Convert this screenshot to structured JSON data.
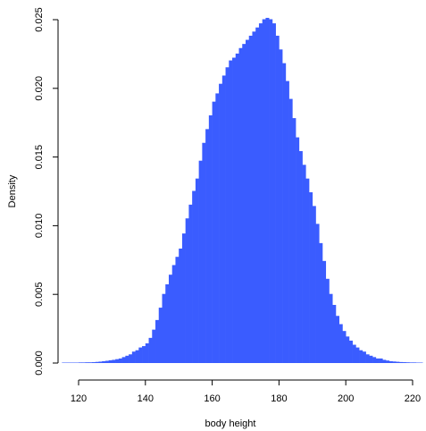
{
  "chart_data": {
    "type": "histogram",
    "x_label": "body height",
    "y_label": "Density",
    "color": "#3a5cff",
    "bins": [
      115,
      116,
      117,
      118,
      119,
      120,
      121,
      122,
      123,
      124,
      125,
      126,
      127,
      128,
      129,
      130,
      131,
      132,
      133,
      134,
      135,
      136,
      137,
      138,
      139,
      140,
      141,
      142,
      143,
      144,
      145,
      146,
      147,
      148,
      149,
      150,
      151,
      152,
      153,
      154,
      155,
      156,
      157,
      158,
      159,
      160,
      161,
      162,
      163,
      164,
      165,
      166,
      167,
      168,
      169,
      170,
      171,
      172,
      173,
      174,
      175,
      176,
      177,
      178,
      179,
      180,
      181,
      182,
      183,
      184,
      185,
      186,
      187,
      188,
      189,
      190,
      191,
      192,
      193,
      194,
      195,
      196,
      197,
      198,
      199,
      200,
      201,
      202,
      203,
      204,
      205,
      206,
      207,
      208,
      209,
      210,
      211,
      212,
      213,
      214,
      215,
      216,
      217,
      218,
      219,
      220,
      221,
      222,
      223
    ],
    "values": [
      0,
      0,
      0,
      0,
      0,
      1e-05,
      1e-05,
      2e-05,
      2e-05,
      3e-05,
      5e-05,
      7e-05,
      0.0001,
      0.00013,
      0.00017,
      0.0002,
      0.00025,
      0.0003,
      0.0004,
      0.0005,
      0.0006,
      0.0008,
      0.0009,
      0.0011,
      0.0012,
      0.0014,
      0.0018,
      0.0024,
      0.0031,
      0.004,
      0.005,
      0.0057,
      0.0064,
      0.0071,
      0.0077,
      0.0083,
      0.0094,
      0.0105,
      0.0115,
      0.0125,
      0.0134,
      0.0147,
      0.016,
      0.017,
      0.018,
      0.019,
      0.0196,
      0.0203,
      0.0209,
      0.0215,
      0.022,
      0.0222,
      0.0225,
      0.0229,
      0.0232,
      0.0235,
      0.0238,
      0.0241,
      0.0244,
      0.0247,
      0.025,
      0.0251,
      0.025,
      0.0247,
      0.0238,
      0.0228,
      0.0218,
      0.0205,
      0.0192,
      0.0178,
      0.0164,
      0.0154,
      0.0144,
      0.0134,
      0.0124,
      0.0114,
      0.0101,
      0.0087,
      0.0074,
      0.0061,
      0.005,
      0.0042,
      0.0034,
      0.0028,
      0.0023,
      0.0019,
      0.0016,
      0.0013,
      0.0011,
      0.0009,
      0.0008,
      0.0006,
      0.0005,
      0.0004,
      0.0003,
      0.0003,
      0.0002,
      0.00015,
      0.0001,
      8e-05,
      6e-05,
      4e-05,
      3e-05,
      2e-05,
      1e-05,
      1e-05,
      0,
      0
    ],
    "xlim": [
      115,
      223
    ],
    "xticks": [
      120,
      140,
      160,
      180,
      200,
      220
    ],
    "ylim": [
      0,
      0.025
    ],
    "yticks": [
      {
        "value": 0,
        "label": "0.000"
      },
      {
        "value": 0.005,
        "label": "0.005"
      },
      {
        "value": 0.01,
        "label": "0.010"
      },
      {
        "value": 0.015,
        "label": "0.015"
      },
      {
        "value": 0.02,
        "label": "0.020"
      },
      {
        "value": 0.025,
        "label": "0.025"
      }
    ]
  }
}
